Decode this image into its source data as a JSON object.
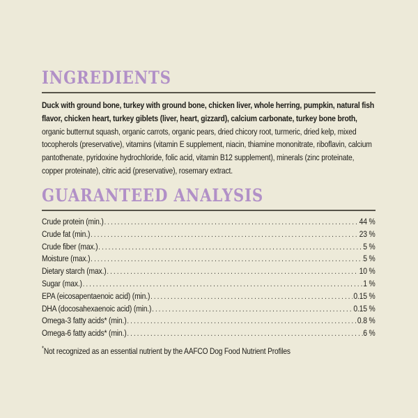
{
  "theme": {
    "background_color": "#edead9",
    "accent_color": "#b190c7",
    "rule_color": "#565349",
    "text_color": "#1d1c18"
  },
  "ingredients": {
    "title": "INGREDIENTS",
    "bold_text": "Duck with ground bone, turkey with ground bone, chicken liver, whole herring, pumpkin, natural fish flavor, chicken heart, turkey giblets (liver, heart, gizzard), calcium carbonate, turkey bone broth,",
    "regular_text": " organic butternut squash, organic carrots, organic pears, dried chicory root, turmeric, dried kelp, mixed tocopherols (preservative), vitamins (vitamin E supplement, niacin, thiamine mononitrate, riboflavin, calcium pantothenate, pyridoxine hydrochloride, folic acid, vitamin B12 supplement), minerals (zinc proteinate, copper proteinate), citric acid (preservative), rosemary extract."
  },
  "guaranteed_analysis": {
    "title": "GUARANTEED ANALYSIS",
    "rows": [
      {
        "label": "Crude protein (min.)",
        "value": "44 %"
      },
      {
        "label": "Crude fat (min.)",
        "value": "23 %"
      },
      {
        "label": "Crude fiber (max.)",
        "value": "5 %"
      },
      {
        "label": "Moisture (max.)",
        "value": "5 %"
      },
      {
        "label": "Dietary starch (max.)",
        "value": "10 %"
      },
      {
        "label": "Sugar (max.)",
        "value": "1 %"
      },
      {
        "label": "EPA (eicosapentaenoic acid) (min.)",
        "value": "0.15 %"
      },
      {
        "label": "DHA (docosahexaenoic acid) (min.)",
        "value": "0.15 %"
      },
      {
        "label": "Omega-3 fatty acids* (min.)",
        "value": "0.8 %"
      },
      {
        "label": "Omega-6 fatty acids* (min.)",
        "value": "6 %"
      }
    ],
    "footnote_marker": "*",
    "footnote_text": "Not recognized as an essential nutrient by the AAFCO Dog Food Nutrient Profiles"
  }
}
